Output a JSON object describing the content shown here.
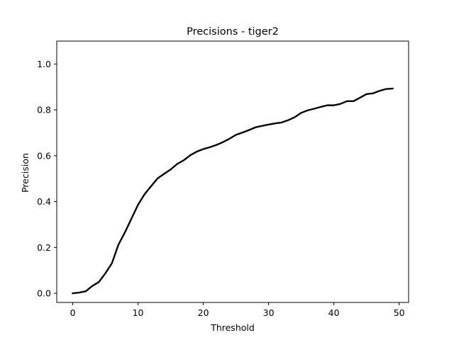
{
  "chart_data": {
    "type": "line",
    "title": "Precisions - tiger2",
    "xlabel": "Threshold",
    "ylabel": "Precision",
    "xlim": [
      -2.45,
      51.45
    ],
    "ylim": [
      -0.04,
      1.1
    ],
    "xticks": [
      0,
      10,
      20,
      30,
      40,
      50
    ],
    "xtick_labels": [
      "0",
      "10",
      "20",
      "30",
      "40",
      "50"
    ],
    "yticks": [
      0.0,
      0.2,
      0.4,
      0.6,
      0.8,
      1.0
    ],
    "ytick_labels": [
      "0.0",
      "0.2",
      "0.4",
      "0.6",
      "0.8",
      "1.0"
    ],
    "grid": false,
    "line_color": "#000000",
    "series": [
      {
        "x": [
          0,
          1,
          2,
          3,
          4,
          5,
          6,
          7,
          8,
          9,
          10,
          11,
          12,
          13,
          14,
          15,
          16,
          17,
          18,
          19,
          20,
          21,
          22,
          23,
          24,
          25,
          26,
          27,
          28,
          29,
          30,
          31,
          32,
          33,
          34,
          35,
          36,
          37,
          38,
          39,
          40,
          41,
          42,
          43,
          44,
          45,
          46,
          47,
          48,
          49
        ],
        "values": [
          0.0,
          0.003,
          0.009,
          0.032,
          0.049,
          0.087,
          0.131,
          0.212,
          0.266,
          0.326,
          0.386,
          0.432,
          0.467,
          0.501,
          0.521,
          0.54,
          0.564,
          0.58,
          0.602,
          0.618,
          0.629,
          0.637,
          0.647,
          0.659,
          0.674,
          0.691,
          0.701,
          0.712,
          0.724,
          0.73,
          0.736,
          0.741,
          0.745,
          0.755,
          0.768,
          0.787,
          0.798,
          0.805,
          0.813,
          0.82,
          0.82,
          0.826,
          0.838,
          0.838,
          0.853,
          0.869,
          0.872,
          0.883,
          0.891,
          0.893
        ]
      }
    ]
  }
}
